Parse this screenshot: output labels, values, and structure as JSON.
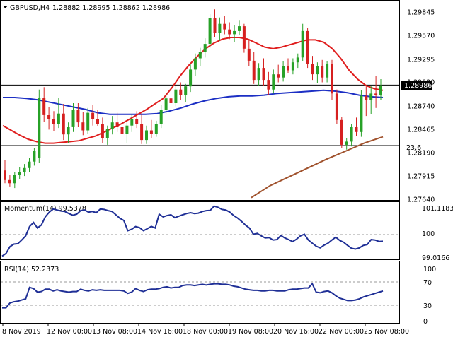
{
  "header": {
    "symbol_tf": "GBPUSD,H4",
    "ohlc": "1.28882 1.28995 1.28862 1.28986"
  },
  "main_panel": {
    "price_ticks": [
      "1.29845",
      "1.29570",
      "1.29295",
      "1.29020",
      "1.28740",
      "1.28465",
      "1.28190",
      "1.27915",
      "1.27640"
    ],
    "current_price_label": "1.28986",
    "fib_label": "23.6",
    "fib_level": 1.2823,
    "current_price_line": 1.28986
  },
  "momentum_panel": {
    "title": "Momentum(14) 99.5378",
    "ticks": [
      "101.1183",
      "100",
      "99.0166"
    ]
  },
  "rsi_panel": {
    "title": "RSI(14) 52.2373",
    "ticks": [
      "100",
      "70",
      "30",
      "0"
    ]
  },
  "x_axis": {
    "labels": [
      "8 Nov 2019",
      "12 Nov 00:00",
      "13 Nov 08:00",
      "14 Nov 16:00",
      "18 Nov 00:00",
      "19 Nov 08:00",
      "20 Nov 16:00",
      "22 Nov 00:00",
      "25 Nov 08:00"
    ]
  },
  "colors": {
    "bull": "#27a127",
    "bear": "#d62020",
    "ma_red": "#e01e1e",
    "ma_blue": "#1c2fc4",
    "ma_brown": "#a0522d",
    "indicator_line": "#1f2f96",
    "badge_bg": "#000000"
  },
  "chart_data": [
    {
      "type": "candlestick",
      "title": "GBPUSD,H4",
      "ylim": [
        1.2756,
        1.3003
      ],
      "candles": [
        [
          1.2792,
          1.2805,
          1.2776,
          1.278
        ],
        [
          1.278,
          1.2786,
          1.2772,
          1.2776
        ],
        [
          1.2776,
          1.279,
          1.277,
          1.2786
        ],
        [
          1.2786,
          1.2796,
          1.2781,
          1.279
        ],
        [
          1.279,
          1.28,
          1.2785,
          1.2795
        ],
        [
          1.2795,
          1.2808,
          1.279,
          1.2803
        ],
        [
          1.2803,
          1.282,
          1.2798,
          1.2816
        ],
        [
          1.2808,
          1.2893,
          1.2801,
          1.2883
        ],
        [
          1.2883,
          1.2896,
          1.2853,
          1.2861
        ],
        [
          1.2861,
          1.2871,
          1.2843,
          1.2856
        ],
        [
          1.2856,
          1.2866,
          1.2841,
          1.285
        ],
        [
          1.285,
          1.2883,
          1.2845,
          1.2863
        ],
        [
          1.2863,
          1.2875,
          1.283,
          1.2837
        ],
        [
          1.2837,
          1.2852,
          1.2826,
          1.2846
        ],
        [
          1.2846,
          1.2876,
          1.284,
          1.2868
        ],
        [
          1.2868,
          1.2876,
          1.2846,
          1.2852
        ],
        [
          1.2852,
          1.2865,
          1.2836,
          1.2842
        ],
        [
          1.2842,
          1.287,
          1.2838,
          1.2864
        ],
        [
          1.2864,
          1.2874,
          1.2848,
          1.2856
        ],
        [
          1.2856,
          1.2868,
          1.2847,
          1.285
        ],
        [
          1.285,
          1.2858,
          1.2826,
          1.2832
        ],
        [
          1.2832,
          1.2848,
          1.2824,
          1.2844
        ],
        [
          1.2844,
          1.286,
          1.2837,
          1.2852
        ],
        [
          1.2852,
          1.2864,
          1.284,
          1.2846
        ],
        [
          1.2846,
          1.2857,
          1.2832,
          1.2838
        ],
        [
          1.2838,
          1.2852,
          1.2826,
          1.2848
        ],
        [
          1.2848,
          1.2862,
          1.284,
          1.2856
        ],
        [
          1.2856,
          1.2866,
          1.2845,
          1.285
        ],
        [
          1.285,
          1.2862,
          1.2825,
          1.283
        ],
        [
          1.283,
          1.2848,
          1.2825,
          1.2842
        ],
        [
          1.2842,
          1.2855,
          1.2832,
          1.2838
        ],
        [
          1.2838,
          1.2854,
          1.2834,
          1.285
        ],
        [
          1.285,
          1.2874,
          1.2845,
          1.2868
        ],
        [
          1.2868,
          1.2888,
          1.2863,
          1.2882
        ],
        [
          1.2882,
          1.2893,
          1.287,
          1.2876
        ],
        [
          1.2876,
          1.2898,
          1.2872,
          1.2893
        ],
        [
          1.2893,
          1.2902,
          1.288,
          1.2886
        ],
        [
          1.2886,
          1.29,
          1.2877,
          1.2897
        ],
        [
          1.2897,
          1.2925,
          1.289,
          1.2918
        ],
        [
          1.2918,
          1.2938,
          1.291,
          1.2932
        ],
        [
          1.2932,
          1.2945,
          1.2922,
          1.294
        ],
        [
          1.294,
          1.2957,
          1.2933,
          1.295
        ],
        [
          1.295,
          1.2987,
          1.2945,
          1.2982
        ],
        [
          1.2982,
          1.2993,
          1.2958,
          1.2964
        ],
        [
          1.2964,
          1.2983,
          1.2954,
          1.2975
        ],
        [
          1.2975,
          1.2985,
          1.2962,
          1.2968
        ],
        [
          1.2968,
          1.2977,
          1.2956,
          1.2962
        ],
        [
          1.2962,
          1.2973,
          1.2952,
          1.2966
        ],
        [
          1.2966,
          1.2979,
          1.2961,
          1.2972
        ],
        [
          1.2972,
          1.2975,
          1.2939,
          1.2944
        ],
        [
          1.2944,
          1.2955,
          1.2922,
          1.2929
        ],
        [
          1.2929,
          1.294,
          1.29,
          1.2905
        ],
        [
          1.2905,
          1.2926,
          1.2898,
          1.292
        ],
        [
          1.292,
          1.2932,
          1.2898,
          1.2905
        ],
        [
          1.2905,
          1.2915,
          1.2886,
          1.2893
        ],
        [
          1.2893,
          1.2918,
          1.2888,
          1.2912
        ],
        [
          1.2912,
          1.2924,
          1.2902,
          1.2908
        ],
        [
          1.2908,
          1.2928,
          1.2903,
          1.2922
        ],
        [
          1.2922,
          1.2932,
          1.2913,
          1.2917
        ],
        [
          1.2917,
          1.2932,
          1.2912,
          1.2927
        ],
        [
          1.2927,
          1.2938,
          1.292,
          1.2933
        ],
        [
          1.2933,
          1.2975,
          1.2928,
          1.2966
        ],
        [
          1.2966,
          1.297,
          1.292,
          1.2925
        ],
        [
          1.2925,
          1.2935,
          1.2905,
          1.2912
        ],
        [
          1.2912,
          1.2927,
          1.2901,
          1.2922
        ],
        [
          1.2922,
          1.293,
          1.2902,
          1.2908
        ],
        [
          1.2908,
          1.2928,
          1.2902,
          1.2925
        ],
        [
          1.2925,
          1.293,
          1.288,
          1.2888
        ],
        [
          1.2888,
          1.2893,
          1.285,
          1.2855
        ],
        [
          1.2855,
          1.2859,
          1.282,
          1.2824
        ],
        [
          1.2824,
          1.2832,
          1.2818,
          1.2828
        ],
        [
          1.2828,
          1.285,
          1.2822,
          1.2846
        ],
        [
          1.2846,
          1.2858,
          1.2835,
          1.284
        ],
        [
          1.284,
          1.2892,
          1.2834,
          1.2885
        ],
        [
          1.2885,
          1.2897,
          1.286,
          1.288
        ],
        [
          1.288,
          1.2897,
          1.2862,
          1.2888
        ],
        [
          1.2888,
          1.291,
          1.287,
          1.2886
        ],
        [
          1.2886,
          1.2906,
          1.288,
          1.2898
        ]
      ],
      "ma_red": [
        1.2848,
        1.2842,
        1.2836,
        1.2831,
        1.2828,
        1.2826,
        1.2826,
        1.2827,
        1.2828,
        1.2829,
        1.2832,
        1.2835,
        1.284,
        1.2845,
        1.285,
        1.2856,
        1.2862,
        1.2868,
        1.2875,
        1.2882,
        1.2895,
        1.291,
        1.2923,
        1.2934,
        1.2944,
        1.2951,
        1.2956,
        1.2958,
        1.2958,
        1.2956,
        1.2951,
        1.2946,
        1.2944,
        1.2946,
        1.2949,
        1.2952,
        1.2955,
        1.2955,
        1.2952,
        1.2944,
        1.2932,
        1.2917,
        1.2906,
        1.2898,
        1.2894,
        1.2892
      ],
      "ma_blue": [
        1.2883,
        1.2883,
        1.2882,
        1.288,
        1.2877,
        1.2874,
        1.2871,
        1.2868,
        1.2864,
        1.2862,
        1.2862,
        1.2862,
        1.2862,
        1.2863,
        1.2866,
        1.287,
        1.2875,
        1.2879,
        1.2882,
        1.2884,
        1.2885,
        1.2885,
        1.2886,
        1.2888,
        1.2889,
        1.289,
        1.2891,
        1.2892,
        1.2891,
        1.2889,
        1.2886,
        1.2884,
        1.2883
      ],
      "ma_brown": [
        1.2758,
        1.2773,
        1.2784,
        1.2795,
        1.2806,
        1.2816,
        1.2826,
        1.2834
      ],
      "fib_level": 1.2823,
      "current_price": 1.28986
    },
    {
      "type": "line",
      "title": "Momentum(14) 99.5378",
      "ylim": [
        98.7,
        101.4
      ],
      "values": [
        98.82,
        98.95,
        99.28,
        99.4,
        99.42,
        99.6,
        99.8,
        100.25,
        100.45,
        100.18,
        100.33,
        100.72,
        100.95,
        101.1,
        101.05,
        101.0,
        100.98,
        100.88,
        100.8,
        100.85,
        101.02,
        101.05,
        100.95,
        100.98,
        100.92,
        101.1,
        101.08,
        101.02,
        100.98,
        100.82,
        100.65,
        100.55,
        100.05,
        100.12,
        100.25,
        100.2,
        100.05,
        100.15,
        100.26,
        100.18,
        100.85,
        100.72,
        100.78,
        100.82,
        100.68,
        100.75,
        100.82,
        100.88,
        100.92,
        100.88,
        100.9,
        100.98,
        101.02,
        101.03,
        101.24,
        101.18,
        101.08,
        101.05,
        100.95,
        100.78,
        100.66,
        100.5,
        100.32,
        100.18,
        99.88,
        99.92,
        99.8,
        99.7,
        99.72,
        99.6,
        99.62,
        99.82,
        99.7,
        99.62,
        99.52,
        99.64,
        99.8,
        99.88,
        99.6,
        99.45,
        99.3,
        99.22,
        99.35,
        99.45,
        99.6,
        99.74,
        99.58,
        99.49,
        99.34,
        99.2,
        99.16,
        99.22,
        99.34,
        99.38,
        99.62,
        99.6,
        99.53,
        99.54
      ]
    },
    {
      "type": "line",
      "title": "RSI(14) 52.2373",
      "ylim": [
        0,
        100
      ],
      "values": [
        24,
        24,
        32,
        34,
        35,
        37,
        39,
        58,
        56,
        50,
        51,
        55,
        55,
        52,
        54,
        52,
        51,
        50,
        51,
        51,
        55,
        53,
        52,
        54,
        53,
        54,
        53,
        53,
        53,
        53,
        53,
        52,
        48,
        50,
        56,
        53,
        51,
        54,
        55,
        55,
        56,
        58,
        59,
        57,
        58,
        58,
        61,
        62,
        62,
        61,
        62,
        63,
        62,
        63,
        64,
        64,
        63,
        63,
        62,
        60,
        59,
        57,
        55,
        54,
        53,
        53,
        52,
        52,
        53,
        53,
        52,
        52,
        52,
        54,
        55,
        55,
        56,
        57,
        57,
        64,
        50,
        49,
        51,
        52,
        49,
        44,
        40,
        38,
        36,
        36,
        37,
        39,
        42,
        44,
        46,
        48,
        50,
        52
      ]
    }
  ]
}
